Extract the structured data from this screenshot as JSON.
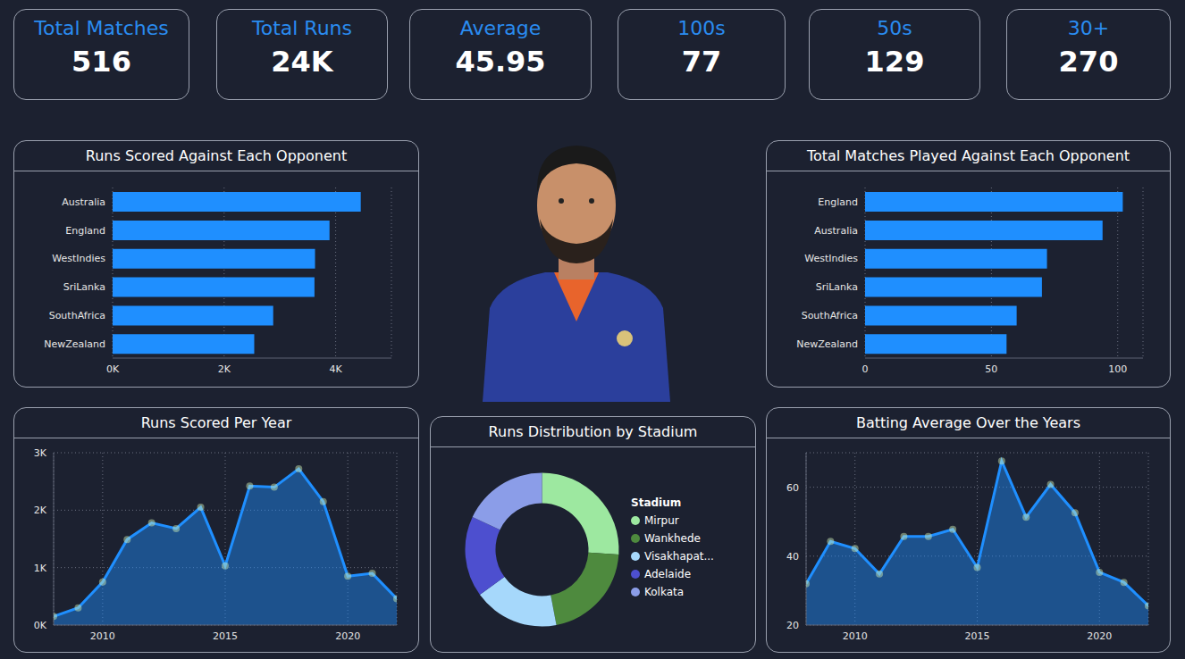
{
  "kpis": [
    {
      "label": "Total Matches",
      "value": 516
    },
    {
      "label": "Total Runs",
      "value": "24K"
    },
    {
      "label": "Average",
      "value": 45.95
    },
    {
      "label": "100s",
      "value": 77
    },
    {
      "label": "50s",
      "value": 129
    },
    {
      "label": "30+",
      "value": 270
    }
  ],
  "chart_data": [
    {
      "type": "bar",
      "title": "Runs Scored Against Each Opponent",
      "orientation": "horizontal",
      "categories": [
        "Australia",
        "England",
        "WestIndies",
        "SriLanka",
        "SouthAfrica",
        "NewZealand"
      ],
      "values": [
        4450,
        3890,
        3630,
        3620,
        2880,
        2540
      ],
      "color": "#1f8fff",
      "xlim": [
        0,
        5000
      ],
      "xticks": [
        {
          "value": 0,
          "label": "0K"
        },
        {
          "value": 2000,
          "label": "2K"
        },
        {
          "value": 4000,
          "label": "4K"
        }
      ],
      "grid": true
    },
    {
      "type": "bar",
      "title": "Total Matches Played Against Each Opponent",
      "orientation": "horizontal",
      "categories": [
        "England",
        "Australia",
        "WestIndies",
        "SriLanka",
        "SouthAfrica",
        "NewZealand"
      ],
      "values": [
        102,
        94,
        72,
        70,
        60,
        56
      ],
      "color": "#1f8fff",
      "xlim": [
        0,
        110
      ],
      "xticks": [
        0,
        50,
        100
      ],
      "grid": true
    },
    {
      "type": "area",
      "title": "Runs Scored Per Year",
      "x": [
        2008,
        2009,
        2010,
        2011,
        2012,
        2013,
        2014,
        2015,
        2016,
        2017,
        2018,
        2019,
        2020,
        2021,
        2022
      ],
      "values": [
        150,
        300,
        750,
        1490,
        1780,
        1680,
        2050,
        1030,
        2420,
        2400,
        2720,
        2150,
        850,
        900,
        460
      ],
      "color": "#1f8fff",
      "marker": "circle",
      "xlim": [
        2008,
        2022
      ],
      "xticks": [
        2010,
        2015,
        2020
      ],
      "ylim": [
        0,
        3000
      ],
      "yticks": [
        {
          "value": 0,
          "label": "0K"
        },
        {
          "value": 1000,
          "label": "1K"
        },
        {
          "value": 2000,
          "label": "2K"
        },
        {
          "value": 3000,
          "label": "3K"
        }
      ],
      "grid": true
    },
    {
      "type": "pie",
      "title": "Runs Distribution by Stadium",
      "legend_title": "Stadium",
      "legend": "right",
      "categories": [
        "Mirpur",
        "Wankhede",
        "Visakhapat...",
        "Adelaide",
        "Kolkata"
      ],
      "values": [
        26,
        21,
        18,
        17,
        18
      ],
      "colors": [
        "#9de8a0",
        "#4e8a3e",
        "#a6d8fb",
        "#4d4fcf",
        "#8b9de8"
      ]
    },
    {
      "type": "area",
      "title": "Batting Average Over the Years",
      "x": [
        2008,
        2009,
        2010,
        2011,
        2012,
        2013,
        2014,
        2015,
        2016,
        2017,
        2018,
        2019,
        2020,
        2021,
        2022
      ],
      "values": [
        32,
        44.3,
        42.2,
        34.8,
        45.7,
        45.7,
        47.8,
        36.7,
        67.6,
        51.3,
        60.8,
        52.6,
        35.3,
        32.4,
        25.6
      ],
      "color": "#1f8fff",
      "marker": "circle",
      "xlim": [
        2008,
        2022
      ],
      "xticks": [
        2010,
        2015,
        2020
      ],
      "ylim": [
        20,
        70
      ],
      "yticks": [
        20,
        40,
        60
      ],
      "grid": true
    }
  ]
}
